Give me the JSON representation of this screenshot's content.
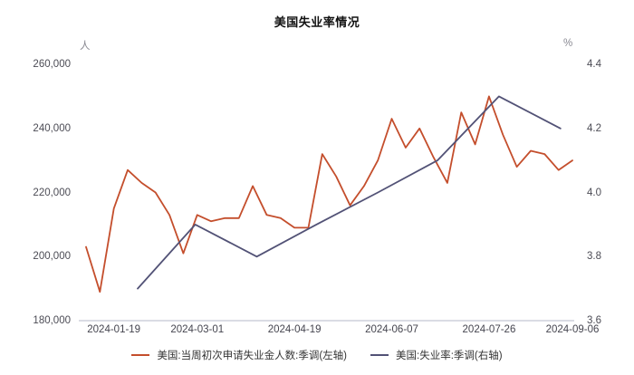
{
  "title": "美国失业率情况",
  "axes": {
    "left_unit": "人",
    "right_unit": "%",
    "left_ticks": [
      {
        "label": "260,000",
        "value": 260000
      },
      {
        "label": "240,000",
        "value": 240000
      },
      {
        "label": "220,000",
        "value": 220000
      },
      {
        "label": "200,000",
        "value": 200000
      },
      {
        "label": "180,000",
        "value": 180000
      }
    ],
    "right_ticks": [
      {
        "label": "4.4",
        "value": 4.4
      },
      {
        "label": "4.2",
        "value": 4.2
      },
      {
        "label": "4.0",
        "value": 4.0
      },
      {
        "label": "3.8",
        "value": 3.8
      },
      {
        "label": "3.6",
        "value": 3.6
      }
    ],
    "x_ticks": [
      {
        "label": "2024-01-19",
        "date": "2024-01-19"
      },
      {
        "label": "2024-03-01",
        "date": "2024-03-01"
      },
      {
        "label": "2024-04-19",
        "date": "2024-04-19"
      },
      {
        "label": "2024-06-07",
        "date": "2024-06-07"
      },
      {
        "label": "2024-07-26",
        "date": "2024-07-26"
      },
      {
        "label": "2024-09-06",
        "date": "2024-09-06"
      }
    ]
  },
  "colors": {
    "claims_line": "#c44e2c",
    "unemployment_line": "#525276",
    "axis_line": "#b4bac9"
  },
  "chart_data": {
    "type": "line",
    "title": "美国失业率情况",
    "x_range": [
      "2024-01-05",
      "2024-09-06"
    ],
    "left_axis": {
      "unit": "人",
      "range": [
        180000,
        260000
      ],
      "tick_step": 20000
    },
    "right_axis": {
      "unit": "%",
      "range": [
        3.6,
        4.4
      ],
      "tick_step": 0.2
    },
    "grid": false,
    "legend_position": "bottom",
    "series": [
      {
        "name": "美国:当周初次申请失业金人数:季调(左轴)",
        "axis": "left",
        "color": "#c44e2c",
        "unit": "人",
        "points": [
          {
            "date": "2024-01-05",
            "value": 203000
          },
          {
            "date": "2024-01-12",
            "value": 189000
          },
          {
            "date": "2024-01-19",
            "value": 215000
          },
          {
            "date": "2024-01-26",
            "value": 227000
          },
          {
            "date": "2024-02-02",
            "value": 223000
          },
          {
            "date": "2024-02-09",
            "value": 220000
          },
          {
            "date": "2024-02-16",
            "value": 213000
          },
          {
            "date": "2024-02-23",
            "value": 201000
          },
          {
            "date": "2024-03-01",
            "value": 213000
          },
          {
            "date": "2024-03-08",
            "value": 211000
          },
          {
            "date": "2024-03-15",
            "value": 212000
          },
          {
            "date": "2024-03-22",
            "value": 212000
          },
          {
            "date": "2024-03-29",
            "value": 222000
          },
          {
            "date": "2024-04-05",
            "value": 213000
          },
          {
            "date": "2024-04-12",
            "value": 212000
          },
          {
            "date": "2024-04-19",
            "value": 209000
          },
          {
            "date": "2024-04-26",
            "value": 209000
          },
          {
            "date": "2024-05-03",
            "value": 232000
          },
          {
            "date": "2024-05-10",
            "value": 225000
          },
          {
            "date": "2024-05-17",
            "value": 216000
          },
          {
            "date": "2024-05-24",
            "value": 222000
          },
          {
            "date": "2024-05-31",
            "value": 230000
          },
          {
            "date": "2024-06-07",
            "value": 243000
          },
          {
            "date": "2024-06-14",
            "value": 234000
          },
          {
            "date": "2024-06-21",
            "value": 240000
          },
          {
            "date": "2024-06-28",
            "value": 231000
          },
          {
            "date": "2024-07-05",
            "value": 223000
          },
          {
            "date": "2024-07-12",
            "value": 245000
          },
          {
            "date": "2024-07-19",
            "value": 235000
          },
          {
            "date": "2024-07-26",
            "value": 250000
          },
          {
            "date": "2024-08-02",
            "value": 238000
          },
          {
            "date": "2024-08-09",
            "value": 228000
          },
          {
            "date": "2024-08-16",
            "value": 233000
          },
          {
            "date": "2024-08-23",
            "value": 232000
          },
          {
            "date": "2024-08-30",
            "value": 227000
          },
          {
            "date": "2024-09-06",
            "value": 230000
          }
        ]
      },
      {
        "name": "美国:失业率:季调(右轴)",
        "axis": "right",
        "color": "#525276",
        "unit": "%",
        "points": [
          {
            "date": "2024-01-31",
            "value": 3.7
          },
          {
            "date": "2024-02-29",
            "value": 3.9
          },
          {
            "date": "2024-03-31",
            "value": 3.8
          },
          {
            "date": "2024-04-30",
            "value": 3.9
          },
          {
            "date": "2024-05-31",
            "value": 4.0
          },
          {
            "date": "2024-06-30",
            "value": 4.1
          },
          {
            "date": "2024-07-31",
            "value": 4.3
          },
          {
            "date": "2024-08-31",
            "value": 4.2
          }
        ]
      }
    ]
  },
  "legend": {
    "items": [
      {
        "label": "美国:当周初次申请失业金人数:季调(左轴)",
        "color": "#c44e2c"
      },
      {
        "label": "美国:失业率:季调(右轴)",
        "color": "#525276"
      }
    ]
  }
}
